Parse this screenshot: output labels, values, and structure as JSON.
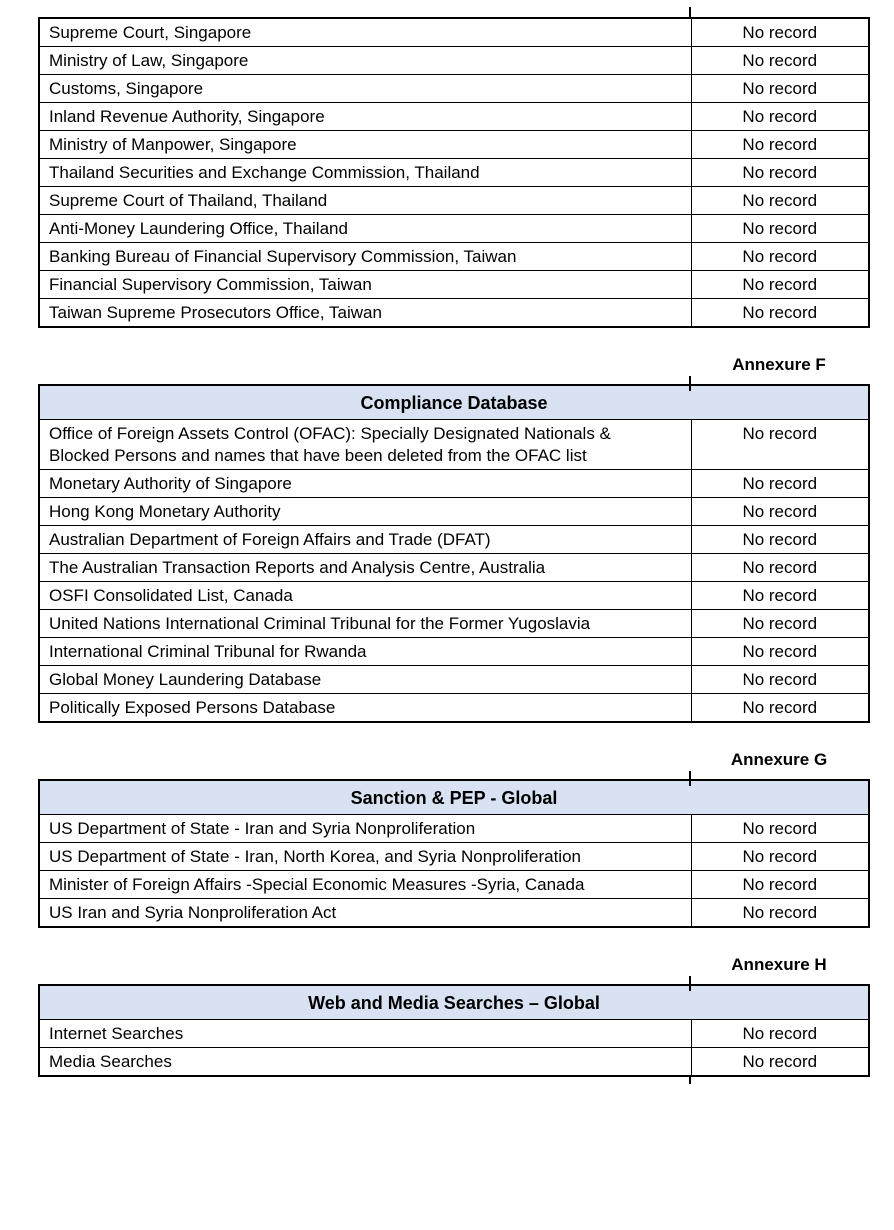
{
  "colors": {
    "header_bg": "#d9e2f2",
    "border": "#000000",
    "text": "#000000"
  },
  "continuation_table": {
    "rows": [
      {
        "source": "Supreme Court, Singapore",
        "result": "No record"
      },
      {
        "source": "Ministry of Law, Singapore",
        "result": "No record"
      },
      {
        "source": "Customs, Singapore",
        "result": "No record"
      },
      {
        "source": "Inland Revenue Authority, Singapore",
        "result": "No record"
      },
      {
        "source": "Ministry of Manpower, Singapore",
        "result": "No record"
      },
      {
        "source": "Thailand Securities and Exchange Commission, Thailand",
        "result": "No record"
      },
      {
        "source": "Supreme Court of Thailand, Thailand",
        "result": "No record"
      },
      {
        "source": "Anti-Money Laundering Office, Thailand",
        "result": "No record"
      },
      {
        "source": "Banking Bureau of Financial Supervisory Commission, Taiwan",
        "result": "No record"
      },
      {
        "source": "Financial Supervisory Commission, Taiwan",
        "result": "No record"
      },
      {
        "source": "Taiwan Supreme Prosecutors Office, Taiwan",
        "result": "No record"
      }
    ]
  },
  "sections": [
    {
      "annexure": "Annexure F",
      "title": "Compliance Database",
      "rows": [
        {
          "source": "Office of Foreign Assets Control (OFAC): Specially Designated Nationals & Blocked Persons and names that have been deleted from the OFAC list",
          "result": "No record"
        },
        {
          "source": "Monetary Authority of Singapore",
          "result": "No record"
        },
        {
          "source": "Hong Kong Monetary Authority",
          "result": "No record"
        },
        {
          "source": "Australian Department of Foreign Affairs and Trade (DFAT)",
          "result": "No record"
        },
        {
          "source": "The Australian Transaction Reports and Analysis Centre, Australia",
          "result": "No record"
        },
        {
          "source": "OSFI Consolidated List, Canada",
          "result": "No record"
        },
        {
          "source": "United Nations International Criminal Tribunal for the Former Yugoslavia",
          "result": "No record"
        },
        {
          "source": "International Criminal Tribunal for Rwanda",
          "result": "No record"
        },
        {
          "source": "Global Money Laundering Database",
          "result": "No record"
        },
        {
          "source": "Politically Exposed Persons Database",
          "result": "No record"
        }
      ]
    },
    {
      "annexure": "Annexure G",
      "title": "Sanction & PEP - Global",
      "rows": [
        {
          "source": "US Department of State - Iran and Syria Nonproliferation",
          "result": "No record"
        },
        {
          "source": "US Department of State - Iran, North Korea, and Syria Nonproliferation",
          "result": "No record"
        },
        {
          "source": "Minister of Foreign Affairs -Special Economic Measures -Syria, Canada",
          "result": "No record"
        },
        {
          "source": "US Iran and Syria Nonproliferation Act",
          "result": "No record"
        }
      ]
    },
    {
      "annexure": "Annexure H",
      "title": "Web and Media Searches – Global",
      "rows": [
        {
          "source": "Internet Searches",
          "result": "No record"
        },
        {
          "source": "Media Searches",
          "result": "No record"
        }
      ]
    }
  ]
}
